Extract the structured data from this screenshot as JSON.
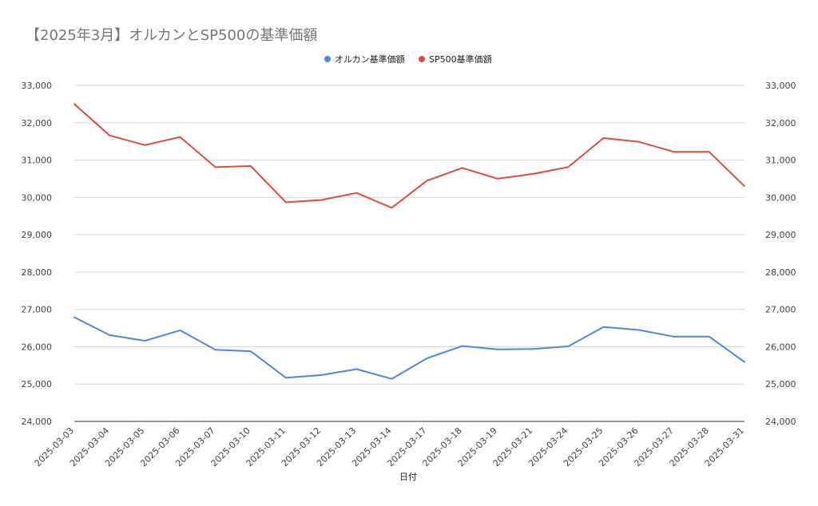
{
  "chart_data": {
    "type": "line",
    "title": "【2025年3月】オルカンとSP500の基準価額",
    "xlabel": "日付",
    "ylabel": "",
    "ylim": [
      24000,
      33000
    ],
    "yticks": [
      "24,000",
      "25,000",
      "26,000",
      "27,000",
      "28,000",
      "29,000",
      "30,000",
      "31,000",
      "32,000",
      "33,000"
    ],
    "grid": true,
    "legend_position": "top",
    "categories": [
      "2025-03-03",
      "2025-03-04",
      "2025-03-05",
      "2025-03-06",
      "2025-03-07",
      "2025-03-10",
      "2025-03-11",
      "2025-03-12",
      "2025-03-13",
      "2025-03-14",
      "2025-03-17",
      "2025-03-18",
      "2025-03-19",
      "2025-03-21",
      "2025-03-24",
      "2025-03-25",
      "2025-03-26",
      "2025-03-27",
      "2025-03-28",
      "2025-03-31"
    ],
    "series": [
      {
        "name": "オルカン基準価額",
        "color": "#4a89dc",
        "values": [
          26790,
          26310,
          26160,
          26440,
          25920,
          25880,
          25170,
          25240,
          25400,
          25140,
          25690,
          26020,
          25930,
          25940,
          26010,
          26530,
          26450,
          26270,
          26270,
          25590
        ]
      },
      {
        "name": "SP500基準価額",
        "color": "#e04b3f",
        "values": [
          32500,
          31660,
          31400,
          31620,
          30810,
          30840,
          29870,
          29930,
          30120,
          29720,
          30450,
          30790,
          30500,
          30630,
          30810,
          31590,
          31490,
          31220,
          31220,
          30300
        ]
      }
    ]
  }
}
